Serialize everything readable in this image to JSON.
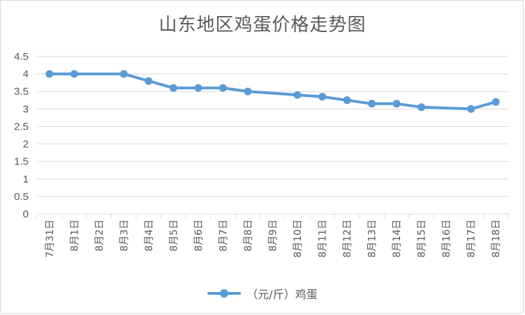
{
  "chart_data": {
    "type": "line",
    "title": "山东地区鸡蛋价格走势图",
    "categories": [
      "7月31日",
      "8月1日",
      "8月2日",
      "8月3日",
      "8月4日",
      "8月5日",
      "8月6日",
      "8月7日",
      "8月8日",
      "8月9日",
      "8月10日",
      "8月11日",
      "8月12日",
      "8月13日",
      "8月14日",
      "8月15日",
      "8月16日",
      "8月17日",
      "8月18日"
    ],
    "series": [
      {
        "name": "（元/斤）鸡蛋",
        "color": "#5b9bd5",
        "values": [
          4.0,
          4.0,
          null,
          4.0,
          3.8,
          3.6,
          3.6,
          3.6,
          3.5,
          null,
          3.4,
          3.35,
          3.25,
          3.15,
          3.15,
          3.05,
          null,
          3.0,
          3.2
        ]
      }
    ],
    "yticks": [
      "0",
      "0.5",
      "1",
      "1.5",
      "2",
      "2.5",
      "3",
      "3.5",
      "4",
      "4.5"
    ],
    "ylim": [
      0,
      4.5
    ],
    "grid": true,
    "legend_position": "bottom"
  }
}
